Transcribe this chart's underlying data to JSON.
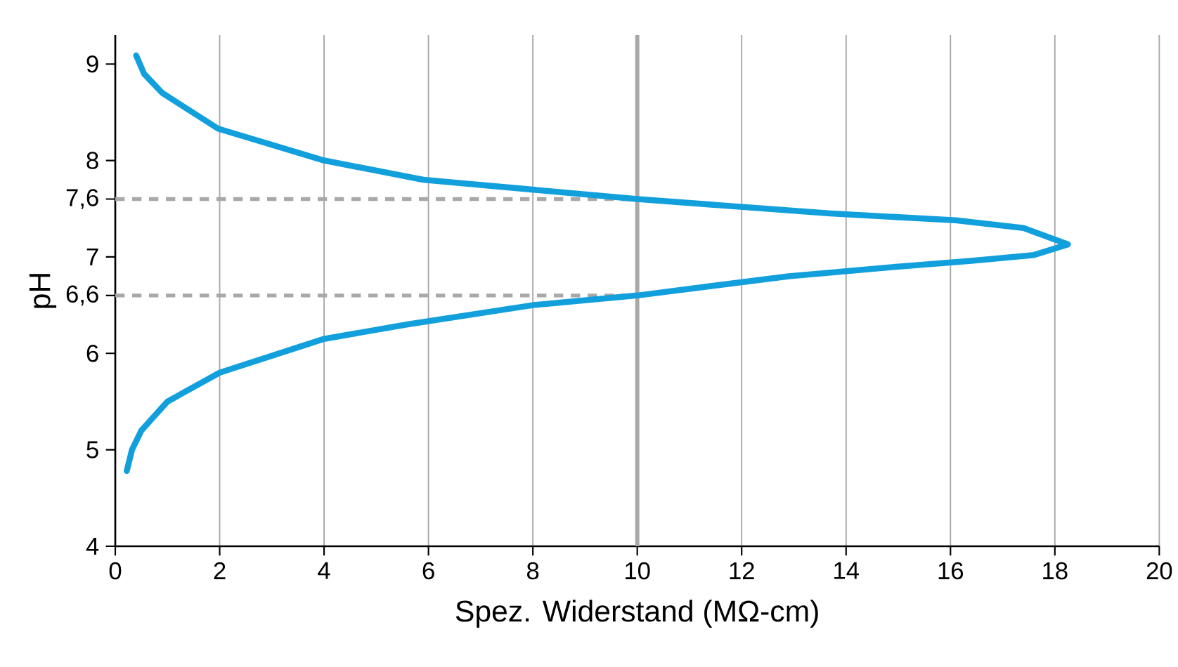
{
  "chart_data": {
    "type": "line",
    "xlabel": "Spez. Widerstand (MΩ-cm)",
    "ylabel": "pH",
    "series": [
      {
        "color": "#12a0dc",
        "x": [
          0.4,
          0.55,
          0.9,
          1.97,
          4.0,
          5.9,
          10.0,
          13.7,
          16.1,
          17.4,
          18.25,
          17.6,
          16.4,
          15.0,
          12.9,
          10.0,
          8.0,
          5.6,
          4.0,
          2.0,
          1.0,
          0.5,
          0.32,
          0.22
        ],
        "values": [
          9.09,
          8.9,
          8.7,
          8.33,
          8.0,
          7.8,
          7.6,
          7.45,
          7.38,
          7.3,
          7.13,
          7.02,
          6.96,
          6.9,
          6.8,
          6.6,
          6.5,
          6.3,
          6.15,
          5.8,
          5.5,
          5.2,
          5.0,
          4.78
        ]
      }
    ],
    "xlim": [
      0,
      20
    ],
    "xticks": [
      0,
      2,
      4,
      6,
      8,
      10,
      12,
      14,
      16,
      18,
      20
    ],
    "ylim": [
      4,
      9.3
    ],
    "yticks": [
      4,
      5,
      6,
      {
        "value": 6.6,
        "label": "6,6"
      },
      7,
      {
        "value": 7.6,
        "label": "7,6"
      },
      8,
      9
    ],
    "grid": "x",
    "marker": "none",
    "line_style": "solid",
    "ref_lines": [
      {
        "axis": "x",
        "value": 10,
        "color": "#a8a8a8",
        "line_style": "solid"
      },
      {
        "axis": "y",
        "value": 6.6,
        "color": "#a8a8a8",
        "line_style": "dashed"
      },
      {
        "axis": "y",
        "value": 7.6,
        "color": "#a8a8a8",
        "line_style": "dashed"
      }
    ]
  }
}
